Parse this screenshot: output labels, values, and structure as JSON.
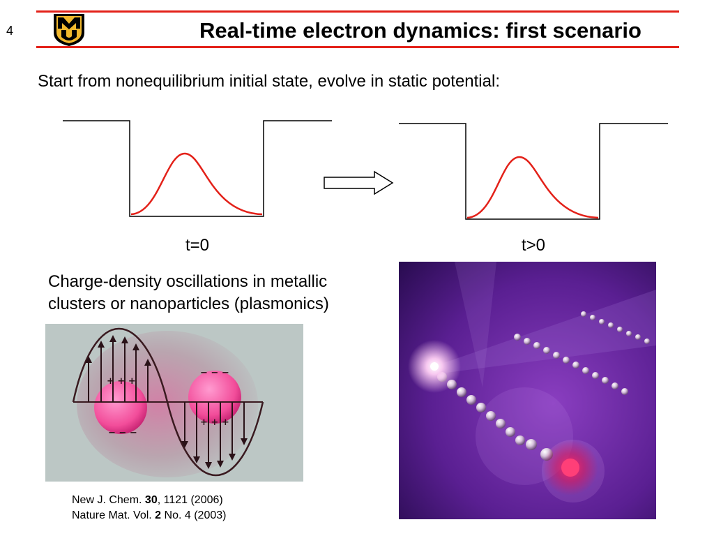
{
  "slide": {
    "number": "4",
    "title": "Real-time electron dynamics: first scenario",
    "subtitle": "Start from nonequilibrium initial state, evolve in static potential:"
  },
  "logo": {
    "icon": "mizzou-m-u-shield-logo",
    "colors": {
      "black": "#000000",
      "gold": "#f1b82d"
    }
  },
  "diagram": {
    "left_label": "t=0",
    "right_label": "t>0",
    "curve_color": "#e32119",
    "arrow_icon": "right-block-arrow-icon"
  },
  "description": {
    "line1": "Charge-density oscillations in metallic",
    "line2": "clusters or nanoparticles (plasmonics)"
  },
  "references": [
    {
      "prefix": "New J. Chem. ",
      "bold": "30",
      "suffix": ", 1121 (2006)"
    },
    {
      "prefix": "Nature Mat. Vol. ",
      "bold": "2",
      "suffix": " No. 4 (2003)"
    }
  ],
  "colors": {
    "accent_red": "#e32119"
  }
}
